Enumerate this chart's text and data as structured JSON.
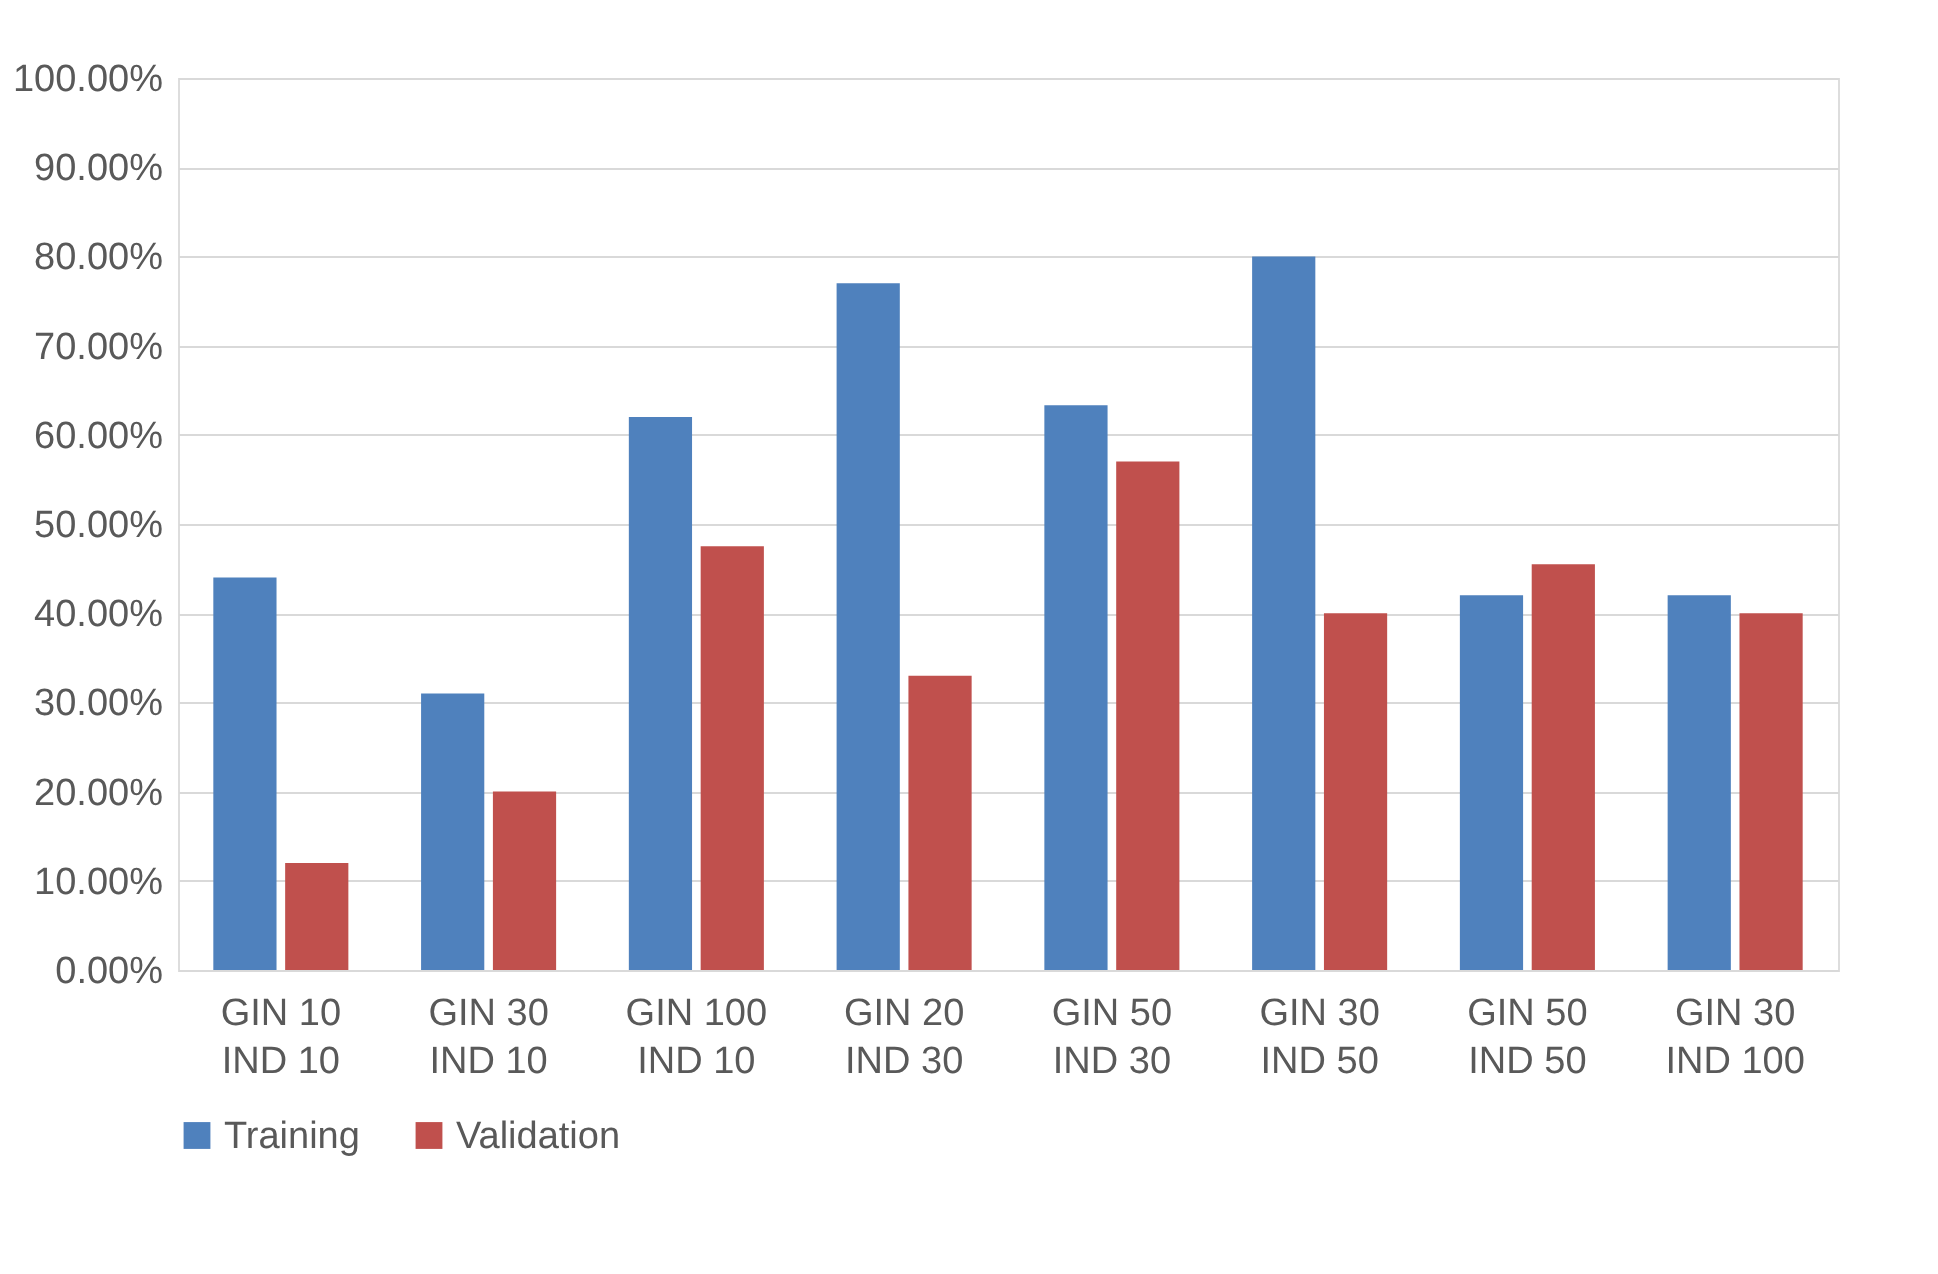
{
  "chart_data": {
    "type": "bar",
    "categories": [
      "GIN 10\nIND 10",
      "GIN 30\nIND 10",
      "GIN 100\nIND 10",
      "GIN 20\nIND 30",
      "GIN 50\nIND 30",
      "GIN 30\nIND 50",
      "GIN 50\nIND 50",
      "GIN 30\nIND 100"
    ],
    "series": [
      {
        "name": "Training",
        "color": "#4f81bd",
        "values": [
          44,
          31,
          62,
          77,
          63.3,
          80,
          42,
          42
        ]
      },
      {
        "name": "Validation",
        "color": "#c0504d",
        "values": [
          12,
          20,
          47.5,
          33,
          57,
          40,
          45.5,
          40
        ]
      }
    ],
    "ylim": [
      0,
      100
    ],
    "yticks": [
      {
        "value": 0,
        "label": "0.00%"
      },
      {
        "value": 10,
        "label": "10.00%"
      },
      {
        "value": 20,
        "label": "20.00%"
      },
      {
        "value": 30,
        "label": "30.00%"
      },
      {
        "value": 40,
        "label": "40.00%"
      },
      {
        "value": 50,
        "label": "50.00%"
      },
      {
        "value": 60,
        "label": "60.00%"
      },
      {
        "value": 70,
        "label": "70.00%"
      },
      {
        "value": 80,
        "label": "80.00%"
      },
      {
        "value": 90,
        "label": "90.00%"
      },
      {
        "value": 100,
        "label": "100.00%"
      }
    ],
    "grid": "y",
    "legend": "bottom"
  }
}
